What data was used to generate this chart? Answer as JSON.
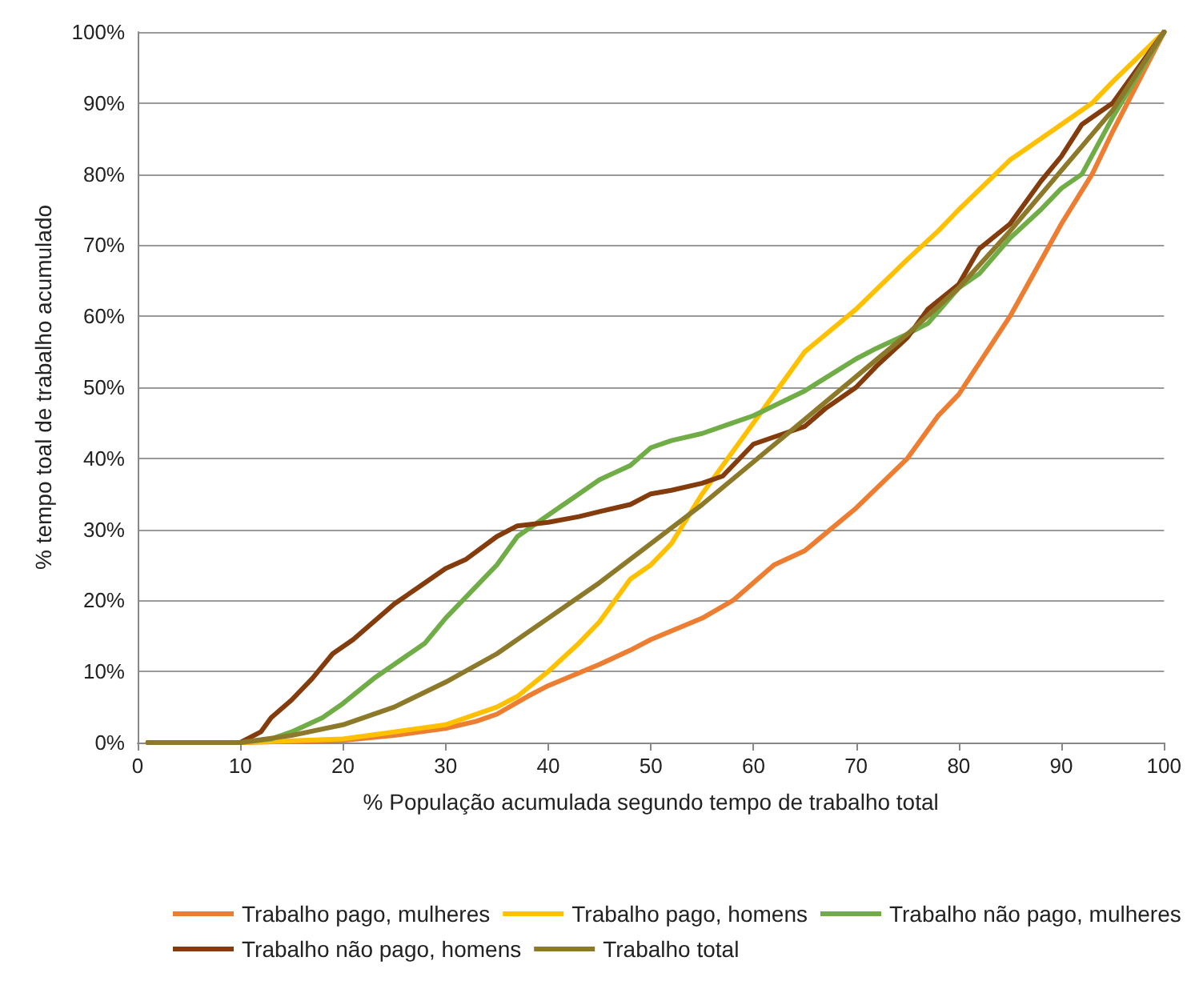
{
  "chart_data": {
    "type": "line",
    "xlabel": "% População acumulada segundo tempo de trabalho total",
    "ylabel": "% tempo toal de trabalho acumulado",
    "xlim": [
      0,
      100
    ],
    "xticks": [
      0,
      10,
      20,
      30,
      40,
      50,
      60,
      70,
      80,
      90,
      100
    ],
    "ylim": [
      0,
      100
    ],
    "yticks": [
      {
        "value": 0,
        "label": "0%"
      },
      {
        "value": 10,
        "label": "10%"
      },
      {
        "value": 20,
        "label": "20%"
      },
      {
        "value": 30,
        "label": "30%"
      },
      {
        "value": 40,
        "label": "40%"
      },
      {
        "value": 50,
        "label": "50%"
      },
      {
        "value": 60,
        "label": "60%"
      },
      {
        "value": 70,
        "label": "70%"
      },
      {
        "value": 80,
        "label": "80%"
      },
      {
        "value": 90,
        "label": "90%"
      },
      {
        "value": 100,
        "label": "100%"
      }
    ],
    "grid": "y",
    "legend": "bottom",
    "marker": "none",
    "line_style": "solid",
    "series": [
      {
        "name": "Trabalho pago, mulheres",
        "color": "#ed7d31",
        "x": [
          1,
          10,
          20,
          25,
          30,
          33,
          35,
          38,
          40,
          45,
          48,
          50,
          55,
          58,
          60,
          62,
          65,
          70,
          75,
          78,
          80,
          85,
          90,
          93,
          95,
          100
        ],
        "values": [
          0,
          0,
          0.3,
          1,
          2,
          3,
          4,
          6.5,
          8,
          11,
          13,
          14.5,
          17.5,
          20,
          22.5,
          25,
          27,
          33,
          40,
          46,
          49,
          60,
          73,
          80,
          86,
          100
        ]
      },
      {
        "name": "Trabalho pago, homens",
        "color": "#ffc000",
        "x": [
          1,
          10,
          20,
          25,
          30,
          35,
          37,
          40,
          43,
          45,
          48,
          50,
          52,
          55,
          58,
          60,
          63,
          65,
          70,
          75,
          78,
          80,
          85,
          90,
          93,
          95,
          100
        ],
        "values": [
          0,
          0,
          0.5,
          1.5,
          2.5,
          5,
          6.5,
          10,
          14,
          17,
          23,
          25,
          28,
          35,
          41,
          45,
          51,
          55,
          61,
          68,
          72,
          75,
          82,
          87,
          90,
          93,
          100
        ]
      },
      {
        "name": "Trabalho não pago, mulheres",
        "color": "#70ad47",
        "x": [
          1,
          10,
          13,
          15,
          18,
          20,
          23,
          25,
          28,
          30,
          33,
          35,
          37,
          40,
          43,
          45,
          48,
          50,
          52,
          55,
          58,
          60,
          65,
          70,
          72,
          75,
          77,
          80,
          82,
          85,
          88,
          90,
          92,
          95,
          100
        ],
        "values": [
          0,
          0,
          0.5,
          1.5,
          3.5,
          5.5,
          9,
          11,
          14,
          17.5,
          22,
          25,
          29,
          32,
          35,
          37,
          39,
          41.5,
          42.5,
          43.5,
          45,
          46,
          49.5,
          54,
          55.5,
          57.5,
          59,
          64,
          66,
          71,
          75,
          78,
          80,
          88,
          100
        ]
      },
      {
        "name": "Trabalho não pago, homens",
        "color": "#843c0c",
        "x": [
          1,
          10,
          12,
          13,
          15,
          17,
          19,
          21,
          25,
          28,
          30,
          32,
          35,
          37,
          40,
          43,
          45,
          48,
          50,
          52,
          55,
          57,
          60,
          63,
          65,
          67,
          70,
          72,
          75,
          77,
          80,
          82,
          85,
          88,
          90,
          92,
          95,
          100
        ],
        "values": [
          0,
          0,
          1.5,
          3.5,
          6,
          9,
          12.5,
          14.5,
          19.5,
          22.5,
          24.5,
          25.8,
          29,
          30.5,
          31,
          31.8,
          32.5,
          33.5,
          35,
          35.5,
          36.5,
          37.5,
          42,
          43.5,
          44.5,
          47,
          50,
          53,
          57,
          61,
          64.5,
          69.5,
          73,
          79,
          82.5,
          87,
          90,
          100
        ]
      },
      {
        "name": "Trabalho total",
        "color": "#8c7a2a",
        "x": [
          1,
          10,
          15,
          20,
          25,
          30,
          35,
          40,
          45,
          50,
          55,
          60,
          65,
          70,
          75,
          80,
          85,
          90,
          95,
          100
        ],
        "values": [
          0,
          0,
          1,
          2.5,
          5,
          8.5,
          12.5,
          17.5,
          22.5,
          28,
          33.5,
          39.5,
          45.5,
          51.5,
          57.5,
          64,
          72,
          80.5,
          89,
          100
        ]
      }
    ]
  }
}
